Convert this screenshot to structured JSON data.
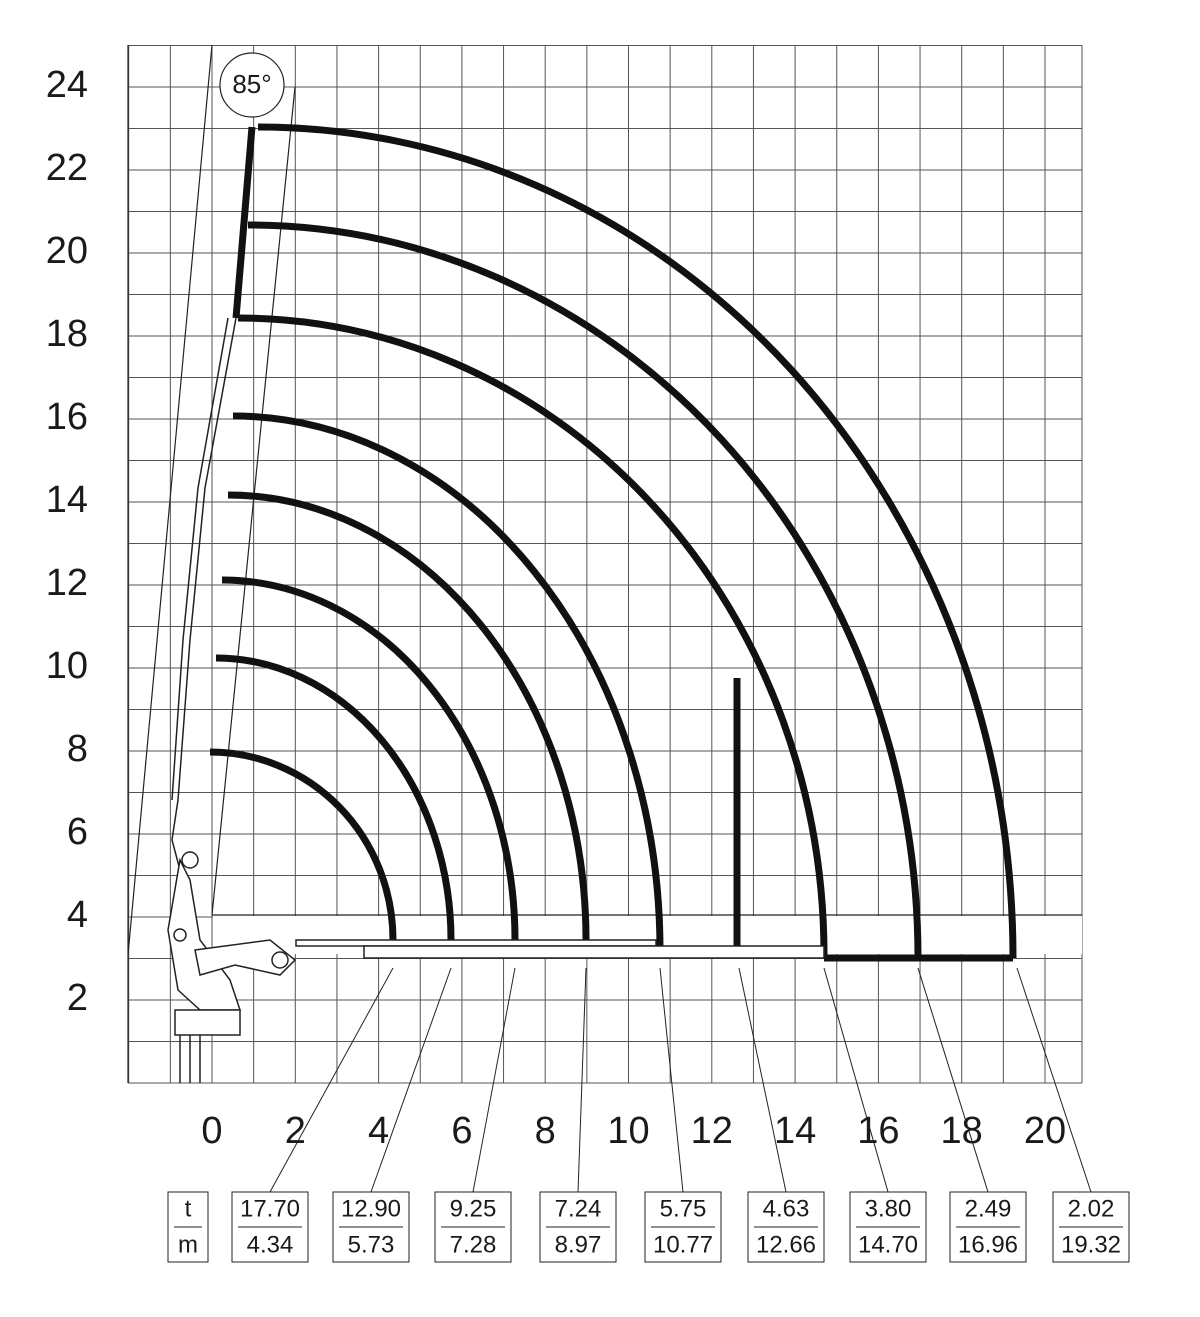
{
  "y_axis": {
    "ticks": [
      "2",
      "4",
      "6",
      "8",
      "10",
      "12",
      "14",
      "16",
      "18",
      "20",
      "22",
      "24"
    ]
  },
  "x_axis": {
    "ticks": [
      "0",
      "2",
      "4",
      "6",
      "8",
      "10",
      "12",
      "14",
      "16",
      "18",
      "20"
    ]
  },
  "angle_label": "85°",
  "load_table": {
    "header": {
      "top": "t",
      "bottom": "m"
    },
    "columns": [
      {
        "t": "17.70",
        "m": "4.34"
      },
      {
        "t": "12.90",
        "m": "5.73"
      },
      {
        "t": "9.25",
        "m": "7.28"
      },
      {
        "t": "7.24",
        "m": "8.97"
      },
      {
        "t": "5.75",
        "m": "10.77"
      },
      {
        "t": "4.63",
        "m": "12.66"
      },
      {
        "t": "3.80",
        "m": "14.70"
      },
      {
        "t": "2.49",
        "m": "16.96"
      },
      {
        "t": "2.02",
        "m": "19.32"
      }
    ]
  }
}
